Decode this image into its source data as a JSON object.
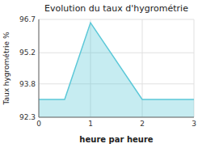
{
  "chart_data": {
    "type": "area",
    "title": "Evolution du taux d'hygrométrie",
    "xlabel": "heure par heure",
    "ylabel": "Taux hygrométrie %",
    "x": [
      0,
      0.5,
      1,
      2,
      2,
      3
    ],
    "values": [
      93.1,
      93.1,
      96.55,
      93.1,
      93.1,
      93.1
    ],
    "color": "#5bc8d8",
    "xlim": [
      0,
      3
    ],
    "ylim": [
      92.3,
      96.7
    ],
    "xticks": [
      0,
      1,
      2,
      3
    ],
    "yticks": [
      92.3,
      93.8,
      95.2,
      96.7
    ],
    "grid": true
  }
}
